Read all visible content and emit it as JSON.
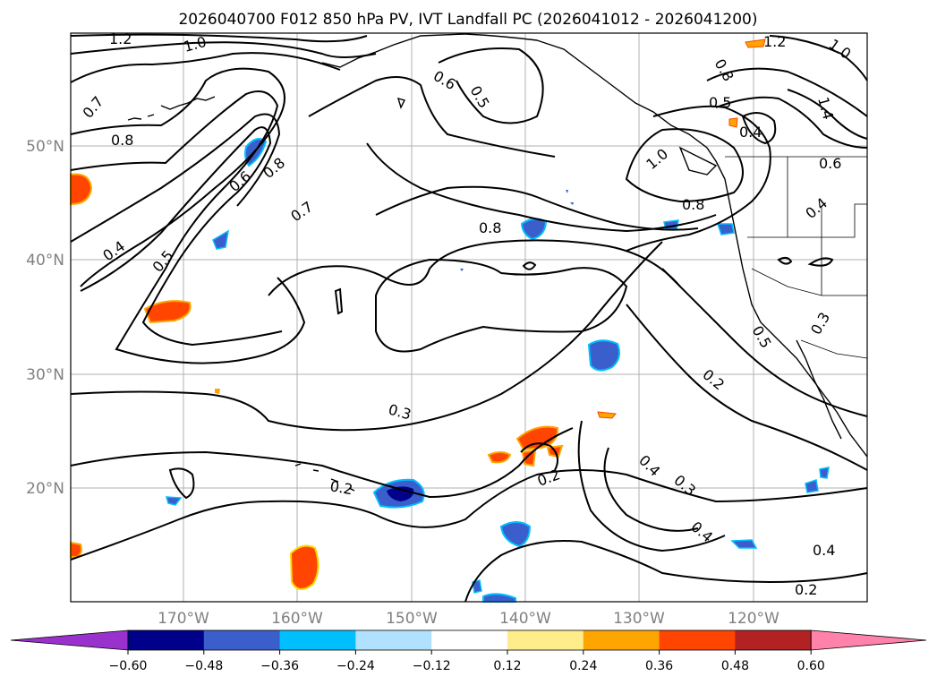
{
  "title": "2026040700 F012 850 hPa PV, IVT Landfall PC (2026041012 - 2026041200)",
  "lon_labels": [
    "170°W",
    "160°W",
    "150°W",
    "140°W",
    "130°W",
    "120°W"
  ],
  "lat_labels": [
    "50°N",
    "40°N",
    "30°N",
    "20°N"
  ],
  "contour_labels": [
    "1.2",
    "1.0",
    "0.7",
    "0.8",
    "0.6",
    "0.8",
    "0.7",
    "0.5",
    "0.4",
    "0.6",
    "0.5",
    "0.8",
    "1.0",
    "0.8",
    "0.5",
    "0.4",
    "1.2",
    "1.0",
    "1.4",
    "0.6",
    "0.8",
    "0.4",
    "0.5",
    "0.3",
    "0.2",
    "0.3",
    "0.2",
    "0.2",
    "0.4",
    "0.3",
    "0.4",
    "0.4",
    "0.2"
  ],
  "colorbar": {
    "ticks": [
      "−0.60",
      "−0.48",
      "−0.36",
      "−0.24",
      "−0.12",
      "0.12",
      "0.24",
      "0.36",
      "0.48",
      "0.60"
    ],
    "colors": [
      "#9932cc",
      "#00008b",
      "#3a5fcd",
      "#00bfff",
      "#b0e2ff",
      "#ffffff",
      "#ffec8b",
      "#ffa500",
      "#ff4500",
      "#b22222",
      "#ff82ab"
    ]
  }
}
